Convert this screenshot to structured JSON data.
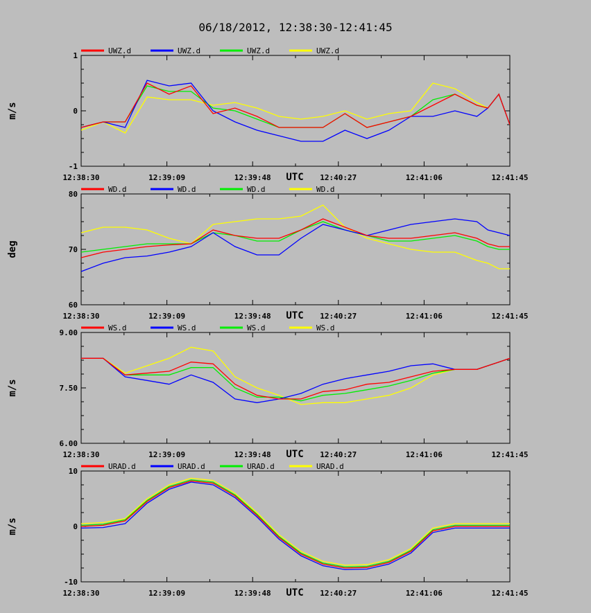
{
  "title": "06/18/2012, 12:38:30-12:41:45",
  "colors": {
    "red": "#ff0000",
    "blue": "#0000ff",
    "green": "#00ee00",
    "yellow": "#ffff00"
  },
  "chart_data": [
    {
      "type": "line",
      "ylabel": "m/s",
      "xlabel": "UTC",
      "ylim": [
        -1,
        1
      ],
      "yticks": [
        "-1",
        "0",
        "1"
      ],
      "xticks": [
        "12:38:30",
        "12:39:09",
        "12:39:48",
        "12:40:27",
        "12:41:06",
        "12:41:45"
      ],
      "xlim_seconds": [
        0,
        195
      ],
      "x": [
        0,
        10,
        20,
        30,
        40,
        50,
        60,
        70,
        80,
        90,
        100,
        110,
        120,
        130,
        140,
        150,
        160,
        170,
        180,
        185,
        190,
        195
      ],
      "series": [
        {
          "name": "UWZ.d",
          "color": "#ff0000",
          "values": [
            -0.3,
            -0.2,
            -0.2,
            0.5,
            0.3,
            0.45,
            -0.05,
            0.05,
            -0.1,
            -0.3,
            -0.3,
            -0.3,
            -0.05,
            -0.3,
            -0.2,
            -0.1,
            0.1,
            0.3,
            0.1,
            0.05,
            0.3,
            -0.25
          ]
        },
        {
          "name": "UWZ.d",
          "color": "#0000ff",
          "values": [
            -0.3,
            -0.2,
            -0.3,
            0.55,
            0.45,
            0.5,
            0.0,
            -0.2,
            -0.35,
            -0.45,
            -0.55,
            -0.55,
            -0.35,
            -0.5,
            -0.35,
            -0.1,
            -0.1,
            0.0,
            -0.1,
            0.05,
            0.3,
            -0.25
          ]
        },
        {
          "name": "UWZ.d",
          "color": "#00ee00",
          "values": [
            -0.3,
            -0.2,
            -0.2,
            0.45,
            0.35,
            0.35,
            0.05,
            0.0,
            -0.15,
            -0.3,
            -0.3,
            -0.3,
            -0.05,
            -0.3,
            -0.2,
            -0.1,
            0.2,
            0.3,
            0.1,
            0.05,
            0.3,
            -0.25
          ]
        },
        {
          "name": "UWZ.d",
          "color": "#ffff00",
          "values": [
            -0.35,
            -0.2,
            -0.4,
            0.25,
            0.2,
            0.2,
            0.1,
            0.15,
            0.05,
            -0.1,
            -0.15,
            -0.1,
            0.0,
            -0.15,
            -0.05,
            0.0,
            0.5,
            0.4,
            0.15,
            0.05,
            0.3,
            -0.25
          ]
        }
      ]
    },
    {
      "type": "line",
      "ylabel": "deg",
      "xlabel": "UTC",
      "ylim": [
        60,
        80
      ],
      "yticks": [
        "60",
        "70",
        "80"
      ],
      "xticks": [
        "12:38:30",
        "12:39:09",
        "12:39:48",
        "12:40:27",
        "12:41:06",
        "12:41:45"
      ],
      "xlim_seconds": [
        0,
        195
      ],
      "x": [
        0,
        10,
        20,
        30,
        40,
        50,
        60,
        70,
        80,
        90,
        100,
        110,
        120,
        130,
        140,
        150,
        160,
        170,
        180,
        185,
        190,
        195
      ],
      "series": [
        {
          "name": "WD.d",
          "color": "#ff0000",
          "values": [
            68.5,
            69.5,
            70.0,
            70.5,
            70.8,
            71.0,
            73.5,
            72.5,
            72.0,
            72.0,
            73.5,
            75.5,
            74.0,
            72.5,
            72.0,
            72.0,
            72.5,
            73.0,
            72.0,
            71.0,
            70.5,
            70.5
          ]
        },
        {
          "name": "WD.d",
          "color": "#0000ff",
          "values": [
            66.0,
            67.5,
            68.5,
            68.8,
            69.5,
            70.5,
            73.0,
            70.5,
            69.0,
            69.0,
            72.0,
            74.5,
            73.5,
            72.5,
            73.5,
            74.5,
            75.0,
            75.5,
            75.0,
            73.5,
            73.0,
            72.5
          ]
        },
        {
          "name": "WD.d",
          "color": "#00ee00",
          "values": [
            69.5,
            70.0,
            70.5,
            71.0,
            71.0,
            71.0,
            73.0,
            72.5,
            71.5,
            71.5,
            73.5,
            75.0,
            73.5,
            72.5,
            71.5,
            71.5,
            72.0,
            72.5,
            71.5,
            70.5,
            70.0,
            70.0
          ]
        },
        {
          "name": "WD.d",
          "color": "#ffff00",
          "values": [
            73.0,
            74.0,
            74.0,
            73.5,
            72.0,
            71.0,
            74.5,
            75.0,
            75.5,
            75.5,
            76.0,
            78.0,
            74.0,
            72.0,
            71.0,
            70.0,
            69.5,
            69.5,
            68.0,
            67.5,
            66.5,
            66.5
          ]
        }
      ]
    },
    {
      "type": "line",
      "ylabel": "m/s",
      "xlabel": "UTC",
      "ylim": [
        6.0,
        9.0
      ],
      "yticks": [
        "6.00",
        "7.50",
        "9.00"
      ],
      "xticks": [
        "12:38:30",
        "12:39:09",
        "12:39:48",
        "12:40:27",
        "12:41:06",
        "12:41:45"
      ],
      "xlim_seconds": [
        0,
        195
      ],
      "x": [
        0,
        10,
        20,
        30,
        40,
        50,
        60,
        70,
        80,
        90,
        100,
        110,
        120,
        130,
        140,
        150,
        160,
        170,
        180,
        185,
        190,
        195
      ],
      "series": [
        {
          "name": "WS.d",
          "color": "#ff0000",
          "values": [
            8.3,
            8.3,
            7.85,
            7.9,
            7.95,
            8.2,
            8.15,
            7.6,
            7.3,
            7.2,
            7.2,
            7.4,
            7.45,
            7.6,
            7.65,
            7.8,
            7.95,
            8.0,
            8.0,
            8.1,
            8.2,
            8.3
          ]
        },
        {
          "name": "WS.d",
          "color": "#0000ff",
          "values": [
            8.3,
            8.3,
            7.8,
            7.7,
            7.6,
            7.85,
            7.65,
            7.2,
            7.1,
            7.2,
            7.35,
            7.6,
            7.75,
            7.85,
            7.95,
            8.1,
            8.15,
            8.0,
            8.0,
            8.1,
            8.2,
            8.3
          ]
        },
        {
          "name": "WS.d",
          "color": "#00ee00",
          "values": [
            8.3,
            8.3,
            7.85,
            7.85,
            7.85,
            8.05,
            8.05,
            7.5,
            7.25,
            7.25,
            7.15,
            7.3,
            7.35,
            7.45,
            7.55,
            7.7,
            7.9,
            8.0,
            8.0,
            8.1,
            8.2,
            8.3
          ]
        },
        {
          "name": "WS.d",
          "color": "#ffff00",
          "values": [
            8.3,
            8.3,
            7.9,
            8.1,
            8.3,
            8.6,
            8.5,
            7.8,
            7.5,
            7.3,
            7.05,
            7.1,
            7.1,
            7.2,
            7.3,
            7.5,
            7.85,
            8.0,
            8.0,
            8.1,
            8.2,
            8.3
          ]
        }
      ]
    },
    {
      "type": "line",
      "ylabel": "m/s",
      "xlabel": "UTC",
      "ylim": [
        -10,
        10
      ],
      "yticks": [
        "-10",
        "0",
        "10"
      ],
      "xticks": [
        "12:38:30",
        "12:39:09",
        "12:39:48",
        "12:40:27",
        "12:41:06",
        "12:41:45"
      ],
      "xlim_seconds": [
        0,
        195
      ],
      "x": [
        0,
        10,
        20,
        30,
        40,
        50,
        60,
        70,
        80,
        90,
        100,
        110,
        120,
        130,
        140,
        150,
        160,
        170,
        180,
        185,
        190,
        195
      ],
      "series": [
        {
          "name": "URAD.d",
          "color": "#ff0000",
          "values": [
            0.0,
            0.2,
            1.0,
            4.5,
            7.0,
            8.2,
            7.8,
            5.5,
            2.0,
            -2.0,
            -5.0,
            -6.8,
            -7.5,
            -7.4,
            -6.5,
            -4.5,
            -0.8,
            0.0,
            0.0,
            0.0,
            0.0,
            0.0
          ]
        },
        {
          "name": "URAD.d",
          "color": "#0000ff",
          "values": [
            -0.3,
            -0.2,
            0.5,
            4.2,
            6.7,
            8.0,
            7.5,
            5.2,
            1.7,
            -2.3,
            -5.3,
            -7.1,
            -7.8,
            -7.7,
            -6.8,
            -4.8,
            -1.1,
            -0.3,
            -0.3,
            -0.3,
            -0.3,
            -0.3
          ]
        },
        {
          "name": "URAD.d",
          "color": "#00ee00",
          "values": [
            0.2,
            0.4,
            1.2,
            4.7,
            7.2,
            8.4,
            8.0,
            5.7,
            2.2,
            -1.8,
            -4.8,
            -6.6,
            -7.3,
            -7.2,
            -6.3,
            -4.3,
            -0.6,
            0.2,
            0.2,
            0.2,
            0.2,
            0.2
          ]
        },
        {
          "name": "URAD.d",
          "color": "#ffff00",
          "values": [
            0.5,
            0.7,
            1.4,
            5.0,
            7.5,
            8.7,
            8.3,
            6.0,
            2.5,
            -1.5,
            -4.5,
            -6.3,
            -7.0,
            -6.9,
            -6.0,
            -4.0,
            -0.3,
            0.5,
            0.5,
            0.5,
            0.5,
            0.5
          ]
        }
      ]
    }
  ]
}
